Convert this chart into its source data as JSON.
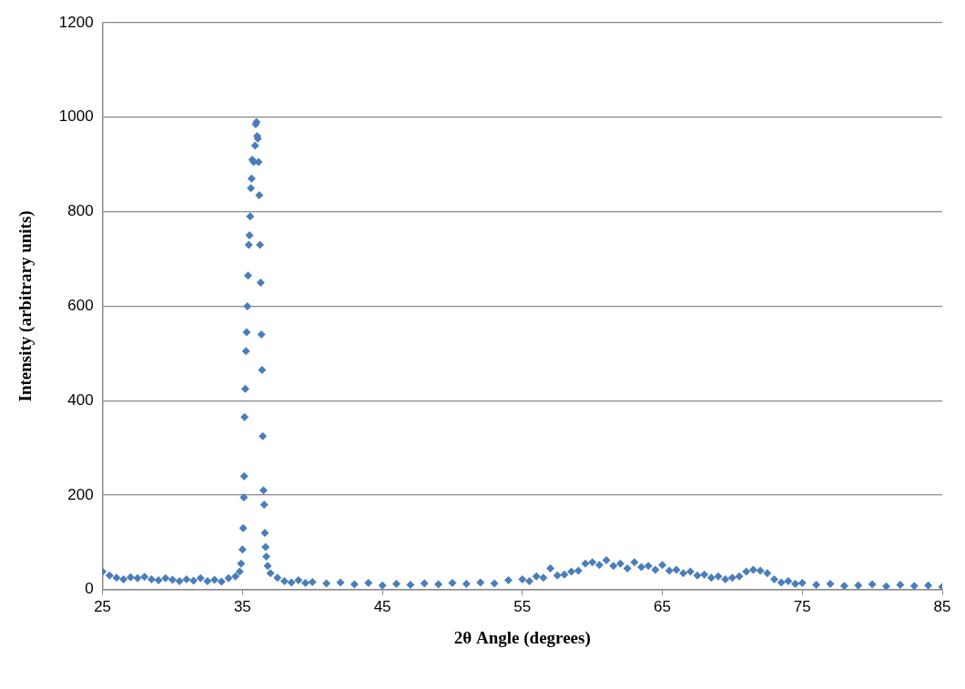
{
  "chart_data": {
    "type": "scatter",
    "xlabel": "2θ Angle (degrees)",
    "ylabel": "Intensity (arbitrary units)",
    "xlim": [
      25,
      85
    ],
    "xticks": [
      25,
      35,
      45,
      55,
      65,
      75,
      85
    ],
    "ylim": [
      0,
      1200
    ],
    "yticks": [
      0,
      200,
      400,
      600,
      800,
      1000,
      1200
    ],
    "grid": "y",
    "marker": "diamond",
    "legend": false,
    "series": [
      {
        "color": "#4a7ebb",
        "x": [
          25,
          25.5,
          26,
          26.5,
          27,
          27.5,
          28,
          28.5,
          29,
          29.5,
          30,
          30.5,
          31,
          31.5,
          32,
          32.5,
          33,
          33.5,
          34,
          34.5,
          34.8,
          34.9,
          35.0,
          35.05,
          35.1,
          35.12,
          35.15,
          35.2,
          35.25,
          35.3,
          35.35,
          35.4,
          35.45,
          35.5,
          35.55,
          35.6,
          35.65,
          35.7,
          35.8,
          35.9,
          35.95,
          36.0,
          36.05,
          36.1,
          36.15,
          36.2,
          36.25,
          36.3,
          36.35,
          36.4,
          36.45,
          36.5,
          36.55,
          36.6,
          36.65,
          36.7,
          36.8,
          37,
          37.5,
          38,
          38.5,
          39,
          39.5,
          40,
          41,
          42,
          43,
          44,
          45,
          46,
          47,
          48,
          49,
          50,
          51,
          52,
          53,
          54,
          55,
          55.5,
          56,
          56.5,
          57,
          57.5,
          58,
          58.5,
          59,
          59.5,
          60,
          60.5,
          61,
          61.5,
          62,
          62.5,
          63,
          63.5,
          64,
          64.5,
          65,
          65.5,
          66,
          66.5,
          67,
          67.5,
          68,
          68.5,
          69,
          69.5,
          70,
          70.5,
          71,
          71.5,
          72,
          72.5,
          73,
          73.5,
          74,
          74.5,
          75,
          76,
          77,
          78,
          79,
          80,
          81,
          82,
          83,
          84,
          85
        ],
        "values": [
          38,
          30,
          25,
          22,
          26,
          24,
          27,
          22,
          20,
          24,
          21,
          18,
          22,
          19,
          24,
          18,
          21,
          17,
          24,
          28,
          38,
          55,
          85,
          130,
          195,
          240,
          365,
          425,
          505,
          545,
          600,
          665,
          730,
          750,
          790,
          850,
          870,
          910,
          905,
          940,
          985,
          990,
          960,
          955,
          905,
          835,
          730,
          650,
          540,
          465,
          325,
          210,
          180,
          120,
          90,
          70,
          50,
          35,
          25,
          18,
          15,
          20,
          14,
          16,
          13,
          15,
          11,
          14,
          9,
          12,
          10,
          13,
          11,
          14,
          12,
          15,
          13,
          20,
          22,
          18,
          28,
          25,
          45,
          30,
          32,
          38,
          40,
          55,
          58,
          52,
          62,
          50,
          55,
          45,
          58,
          48,
          50,
          42,
          52,
          40,
          42,
          35,
          38,
          30,
          32,
          25,
          28,
          22,
          25,
          28,
          38,
          42,
          40,
          35,
          22,
          15,
          18,
          12,
          14,
          10,
          12,
          8,
          9,
          11,
          7,
          10,
          8,
          9,
          6
        ]
      }
    ]
  }
}
